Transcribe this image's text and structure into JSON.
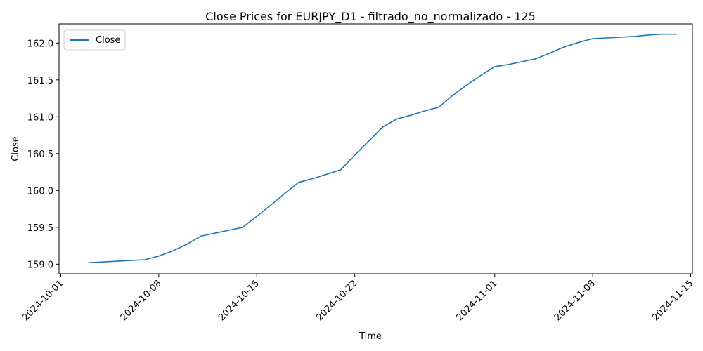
{
  "chart_data": {
    "type": "line",
    "title": "Close Prices for EURJPY_D1 - filtrado_no_normalizado - 125",
    "xlabel": "Time",
    "ylabel": "Close",
    "xlim": [
      "2024-09-30T21:00",
      "2024-11-15T03:00"
    ],
    "ylim": [
      158.87,
      162.26
    ],
    "x_ticks": [
      "2024-10-01",
      "2024-10-08",
      "2024-10-15",
      "2024-10-22",
      "2024-11-01",
      "2024-11-08",
      "2024-11-15"
    ],
    "y_ticks": [
      159.0,
      159.5,
      160.0,
      160.5,
      161.0,
      161.5,
      162.0
    ],
    "y_tick_labels": [
      "159.0",
      "159.5",
      "160.0",
      "160.5",
      "161.0",
      "161.5",
      "162.0"
    ],
    "grid": false,
    "legend_position": "top-left",
    "series": [
      {
        "name": "Close",
        "color": "#1f77b4",
        "x": [
          "2024-10-03",
          "2024-10-04",
          "2024-10-05",
          "2024-10-06",
          "2024-10-07",
          "2024-10-08",
          "2024-10-09",
          "2024-10-10",
          "2024-10-11",
          "2024-10-12",
          "2024-10-13",
          "2024-10-14",
          "2024-10-15",
          "2024-10-16",
          "2024-10-17",
          "2024-10-18",
          "2024-10-19",
          "2024-10-20",
          "2024-10-21",
          "2024-10-22",
          "2024-10-23",
          "2024-10-24",
          "2024-10-25",
          "2024-10-26",
          "2024-10-27",
          "2024-10-28",
          "2024-10-29",
          "2024-10-30",
          "2024-10-31",
          "2024-11-01",
          "2024-11-02",
          "2024-11-03",
          "2024-11-04",
          "2024-11-05",
          "2024-11-06",
          "2024-11-07",
          "2024-11-08",
          "2024-11-09",
          "2024-11-10",
          "2024-11-11",
          "2024-11-12",
          "2024-11-13",
          "2024-11-14"
        ],
        "values": [
          159.02,
          159.03,
          159.04,
          159.05,
          159.06,
          159.11,
          159.18,
          159.27,
          159.38,
          159.42,
          159.46,
          159.5,
          159.65,
          159.8,
          159.96,
          160.11,
          160.16,
          160.22,
          160.28,
          160.48,
          160.67,
          160.86,
          160.97,
          161.02,
          161.08,
          161.13,
          161.29,
          161.43,
          161.56,
          161.68,
          161.71,
          161.75,
          161.79,
          161.87,
          161.95,
          162.01,
          162.06,
          162.07,
          162.08,
          162.09,
          162.11,
          162.12,
          162.12
        ]
      }
    ]
  }
}
